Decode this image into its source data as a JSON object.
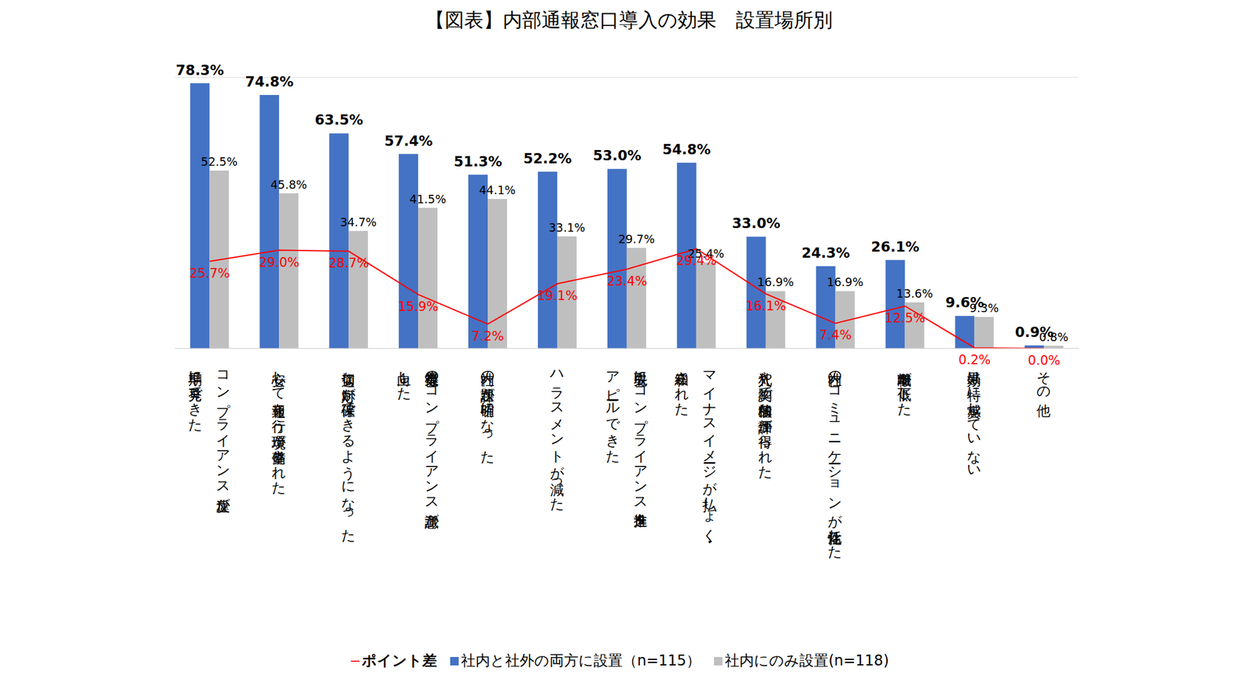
{
  "chart_data": {
    "type": "bar",
    "title": "【図表】内部通報窓口導入の効果　設置場所別",
    "categories": [
      "コンプライアンス違反が\n早期に発見できた",
      "安心して通報を行う環境が整備された",
      "適切な対応が確保できるようになった",
      "従業員等のコンプライアンス意識が\n向上した",
      "社内の課題が明確になった",
      "ハラスメントが減った",
      "取引先にコンプライアンス推進を\nアピールできた",
      "マイナスイメージが払しょく・\n緩和された",
      "入札や契約で積極的な評価が得られた",
      "社内のコミュニケーションが活性化した",
      "離職率が低下した",
      "効果は特に実感していない",
      "その他"
    ],
    "series": [
      {
        "name": "社内と社外の両方に設置（n=115）",
        "type": "bar",
        "color": "#4472C4",
        "values": [
          78.3,
          74.8,
          63.5,
          57.4,
          51.3,
          52.2,
          53.0,
          54.8,
          33.0,
          24.3,
          26.1,
          9.6,
          0.9
        ],
        "value_labels": [
          "78.3%",
          "74.8%",
          "63.5%",
          "57.4%",
          "51.3%",
          "52.2%",
          "53.0%",
          "54.8%",
          "33.0%",
          "24.3%",
          "26.1%",
          "9.6%",
          "0.9%"
        ]
      },
      {
        "name": "社内にのみ設置(n=118)",
        "type": "bar",
        "color": "#BFBFBF",
        "values": [
          52.5,
          45.8,
          34.7,
          41.5,
          44.1,
          33.1,
          29.7,
          25.4,
          16.9,
          16.9,
          13.6,
          9.3,
          0.8
        ],
        "value_labels": [
          "52.5%",
          "45.8%",
          "34.7%",
          "41.5%",
          "44.1%",
          "33.1%",
          "29.7%",
          "25.4%",
          "16.9%",
          "16.9%",
          "13.6%",
          "9.3%",
          "0.8%"
        ]
      },
      {
        "name": "ポイント差",
        "type": "line",
        "color": "#FF0000",
        "marker": "none",
        "values": [
          25.7,
          29.0,
          28.7,
          15.9,
          7.2,
          19.1,
          23.4,
          29.4,
          16.1,
          7.4,
          12.5,
          0.2,
          0.0
        ],
        "value_labels": [
          "25.7%",
          "29.0%",
          "28.7%",
          "15.9%",
          "7.2%",
          "19.1%",
          "23.4%",
          "29.4%",
          "16.1%",
          "7.4%",
          "12.5%",
          "0.2%",
          "0.0%"
        ]
      }
    ],
    "ylim": [
      0,
      80
    ],
    "yticks": [
      0,
      10,
      20,
      30,
      40,
      50,
      60,
      70,
      80
    ],
    "grid": true,
    "legend": "bottom",
    "data_labels": true,
    "tick_labels": false
  }
}
